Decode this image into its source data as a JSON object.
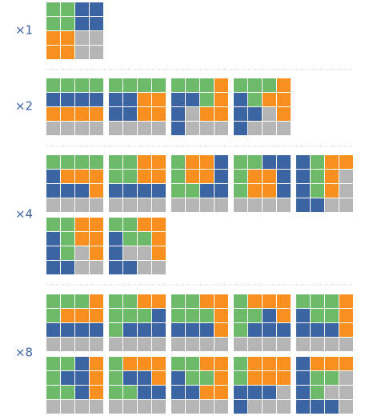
{
  "sections": [
    {
      "label": "×1"
    },
    {
      "label": "×2"
    },
    {
      "label": "×4"
    },
    {
      "label": "×8"
    }
  ]
}
